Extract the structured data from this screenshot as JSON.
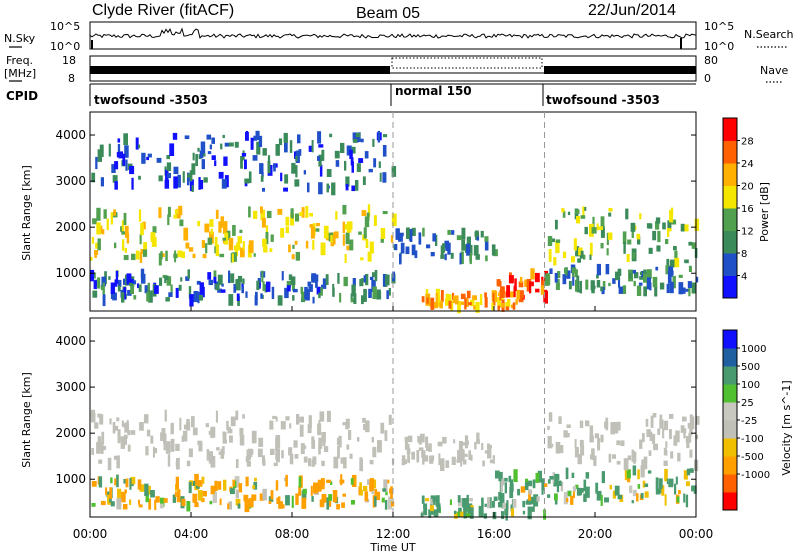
{
  "header": {
    "station": "Clyde River (fitACF)",
    "beam": "Beam 05",
    "date": "22/Jun/2014"
  },
  "noise_panel": {
    "left_label": "N.Sky",
    "right_label": "N.Search",
    "left_ticks": [
      "10^5",
      "10^0"
    ],
    "right_ticks": [
      "10^5",
      "10^0"
    ]
  },
  "freq_panel": {
    "left_label_1": "Freq.",
    "left_label_2": "[MHz]",
    "right_label": "Nave",
    "left_ticks": [
      "18",
      "8"
    ],
    "right_ticks": [
      "80",
      "0"
    ]
  },
  "cpid_panel": {
    "label": "CPID",
    "segments": [
      {
        "name": "twofsound -3503",
        "start_hour": 0
      },
      {
        "name": "normal 150",
        "start_hour": 12
      },
      {
        "name": "twofsound -3503",
        "start_hour": 18
      }
    ]
  },
  "x_axis": {
    "label": "Time UT",
    "range_hours": [
      0,
      24
    ],
    "tick_labels": [
      "00:00",
      "04:00",
      "08:00",
      "12:00",
      "16:00",
      "20:00",
      "00:00"
    ],
    "mode_boundaries_hours": [
      12,
      18
    ]
  },
  "colors": {
    "power_scale": [
      "#1010ff",
      "#2050c8",
      "#3a8a5a",
      "#50a050",
      "#f5e600",
      "#ffb000",
      "#ff6000",
      "#ff0000"
    ],
    "velocity_scale": [
      "#ff0000",
      "#ff6000",
      "#ffa000",
      "#f0c000",
      "#c0c0b8",
      "#c8c8c0",
      "#50c030",
      "#4a9a70",
      "#2060a0",
      "#1010ff"
    ],
    "velocity_ground": "#c0c0b8"
  },
  "chart_data": [
    {
      "type": "heatmap",
      "title": "",
      "xlabel": "Time UT",
      "ylabel": "Slant Range [km]",
      "xlim": [
        0,
        24
      ],
      "ylim": [
        180,
        4500
      ],
      "y_tick_labels": [
        "1000",
        "2000",
        "3000",
        "4000"
      ],
      "colorbar": {
        "label": "Power [dB]",
        "range": [
          0,
          32
        ],
        "tick_labels": [
          "28",
          "24",
          "20",
          "16",
          "12",
          "8",
          "4"
        ]
      },
      "echo_regions": [
        {
          "t_start": 0,
          "t_end": 12,
          "range_min": 1300,
          "range_max": 2400,
          "power_db": 18
        },
        {
          "t_start": 0,
          "t_end": 12,
          "range_min": 400,
          "range_max": 1000,
          "power_db": 8
        },
        {
          "t_start": 0,
          "t_end": 12,
          "range_min": 2800,
          "range_max": 4000,
          "power_db": 6
        },
        {
          "t_start": 12,
          "t_end": 16,
          "range_min": 1300,
          "range_max": 1900,
          "power_db": 10
        },
        {
          "t_start": 13,
          "t_end": 17,
          "range_min": 250,
          "range_max": 550,
          "power_db": 22
        },
        {
          "t_start": 16,
          "t_end": 18,
          "range_min": 450,
          "range_max": 1000,
          "power_db": 28
        },
        {
          "t_start": 18,
          "t_end": 24,
          "range_min": 1200,
          "range_max": 2400,
          "power_db": 14
        },
        {
          "t_start": 18,
          "t_end": 24,
          "range_min": 600,
          "range_max": 1100,
          "power_db": 10
        }
      ]
    },
    {
      "type": "heatmap",
      "title": "",
      "xlabel": "Time UT",
      "ylabel": "Slant Range [km]",
      "xlim": [
        0,
        24
      ],
      "ylim": [
        180,
        4500
      ],
      "y_tick_labels": [
        "1000",
        "2000",
        "3000",
        "4000"
      ],
      "colorbar": {
        "label": "Velocity [m s^-1]",
        "tick_labels": [
          "1000",
          "500",
          "100",
          "25",
          "-25",
          "-100",
          "-500",
          "-1000"
        ]
      },
      "echo_regions": [
        {
          "t_start": 0,
          "t_end": 12,
          "range_min": 1300,
          "range_max": 2400,
          "velocity": 0,
          "ground_scatter": true
        },
        {
          "t_start": 0,
          "t_end": 12,
          "range_min": 400,
          "range_max": 1000,
          "velocity": -80
        },
        {
          "t_start": 12,
          "t_end": 16,
          "range_min": 1300,
          "range_max": 1900,
          "velocity": 0,
          "ground_scatter": true
        },
        {
          "t_start": 13,
          "t_end": 18,
          "range_min": 200,
          "range_max": 600,
          "velocity": 200
        },
        {
          "t_start": 16,
          "t_end": 24,
          "range_min": 500,
          "range_max": 1200,
          "velocity": 150
        },
        {
          "t_start": 18,
          "t_end": 24,
          "range_min": 1300,
          "range_max": 2400,
          "velocity": 0,
          "ground_scatter": true
        }
      ]
    }
  ]
}
